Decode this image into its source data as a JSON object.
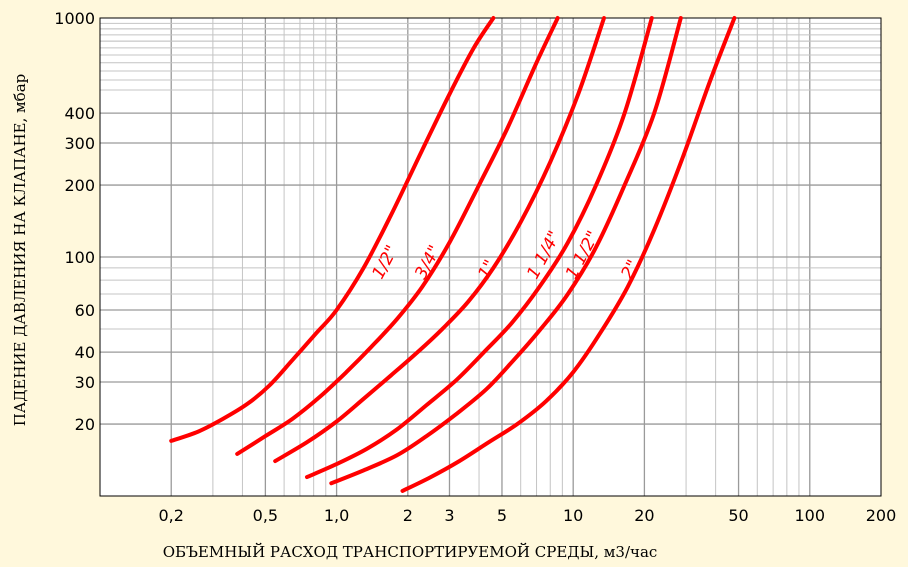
{
  "chart_data": {
    "type": "line",
    "title": "",
    "xlabel": "ОБЪЕМНЫЙ РАСХОД ТРАНСПОРТИРУЕМОЙ СРЕДЫ, м3/час",
    "ylabel": "ПАДЕНИЕ ДАВЛЕНИЯ НА КЛАПАНЕ, мбар",
    "xscale": "log",
    "yscale": "log",
    "xlim": [
      0.1,
      200
    ],
    "ylim": [
      10,
      1000
    ],
    "grid": true,
    "legend": "none",
    "x_ticks": [
      {
        "v": 0.2,
        "label": "0,2"
      },
      {
        "v": 0.5,
        "label": "0,5"
      },
      {
        "v": 1.0,
        "label": "1,0"
      },
      {
        "v": 2,
        "label": "2"
      },
      {
        "v": 3,
        "label": "3"
      },
      {
        "v": 5,
        "label": "5"
      },
      {
        "v": 10,
        "label": "10"
      },
      {
        "v": 20,
        "label": "20"
      },
      {
        "v": 50,
        "label": "50"
      },
      {
        "v": 100,
        "label": "100"
      },
      {
        "v": 200,
        "label": "200"
      }
    ],
    "y_ticks": [
      {
        "v": 20,
        "label": "20"
      },
      {
        "v": 30,
        "label": "30"
      },
      {
        "v": 40,
        "label": "40"
      },
      {
        "v": 60,
        "label": "60"
      },
      {
        "v": 100,
        "label": "100"
      },
      {
        "v": 200,
        "label": "200"
      },
      {
        "v": 300,
        "label": "300"
      },
      {
        "v": 400,
        "label": "400"
      },
      {
        "v": 1000,
        "label": "1000"
      }
    ],
    "colors": {
      "background": "#fff8dc",
      "curves": "#ff0000",
      "plot_area": "#ffffff"
    },
    "series": [
      {
        "name": "1/2\"",
        "label_at": [
          1.55,
          80
        ],
        "x": [
          0.2,
          0.26,
          0.33,
          0.42,
          0.52,
          0.65,
          0.82,
          1.0,
          1.3,
          1.7,
          2.3,
          3.0,
          3.8,
          4.6
        ],
        "y": [
          17,
          18.6,
          21,
          24.3,
          29,
          37,
          48,
          60,
          90,
          150,
          280,
          480,
          750,
          1000
        ]
      },
      {
        "name": "3/4\"",
        "label_at": [
          2.35,
          80
        ],
        "x": [
          0.38,
          0.5,
          0.65,
          0.85,
          1.1,
          1.4,
          1.8,
          2.3,
          3.0,
          4.0,
          5.3,
          7.0,
          8.6
        ],
        "y": [
          15,
          17.8,
          21,
          26,
          33,
          42,
          55,
          75,
          115,
          200,
          350,
          650,
          1000
        ]
      },
      {
        "name": "1\"",
        "label_at": [
          4.35,
          80
        ],
        "x": [
          0.55,
          0.75,
          1.0,
          1.3,
          1.7,
          2.2,
          2.8,
          3.6,
          4.6,
          6.0,
          8.0,
          10.5,
          13.5
        ],
        "y": [
          14,
          16.8,
          20.5,
          25.5,
          32,
          40,
          50,
          65,
          90,
          140,
          250,
          480,
          1000
        ]
      },
      {
        "name": "1 1/4\"",
        "label_at": [
          7.0,
          80
        ],
        "x": [
          0.75,
          1.0,
          1.35,
          1.8,
          2.4,
          3.2,
          4.2,
          5.5,
          7.2,
          9.5,
          12.5,
          16.5,
          21.5
        ],
        "y": [
          12,
          13.6,
          15.8,
          19,
          24,
          30.5,
          40,
          53,
          75,
          115,
          200,
          400,
          1000
        ]
      },
      {
        "name": "1 1/2\"",
        "label_at": [
          10.2,
          80
        ],
        "x": [
          0.95,
          1.3,
          1.8,
          2.4,
          3.2,
          4.3,
          5.6,
          7.3,
          9.5,
          12.5,
          16.5,
          22.0,
          28.5
        ],
        "y": [
          11.3,
          12.8,
          14.8,
          17.8,
          22,
          28,
          37,
          50,
          70,
          110,
          200,
          400,
          1000
        ]
      },
      {
        "name": "2\"",
        "label_at": [
          17.5,
          80
        ],
        "x": [
          1.9,
          2.5,
          3.3,
          4.4,
          5.8,
          7.7,
          10.0,
          13.0,
          17.0,
          22.0,
          29.0,
          38.0,
          48.0
        ],
        "y": [
          10.5,
          12,
          14,
          16.8,
          20,
          25,
          33,
          48,
          75,
          130,
          260,
          550,
          1000
        ]
      }
    ]
  }
}
